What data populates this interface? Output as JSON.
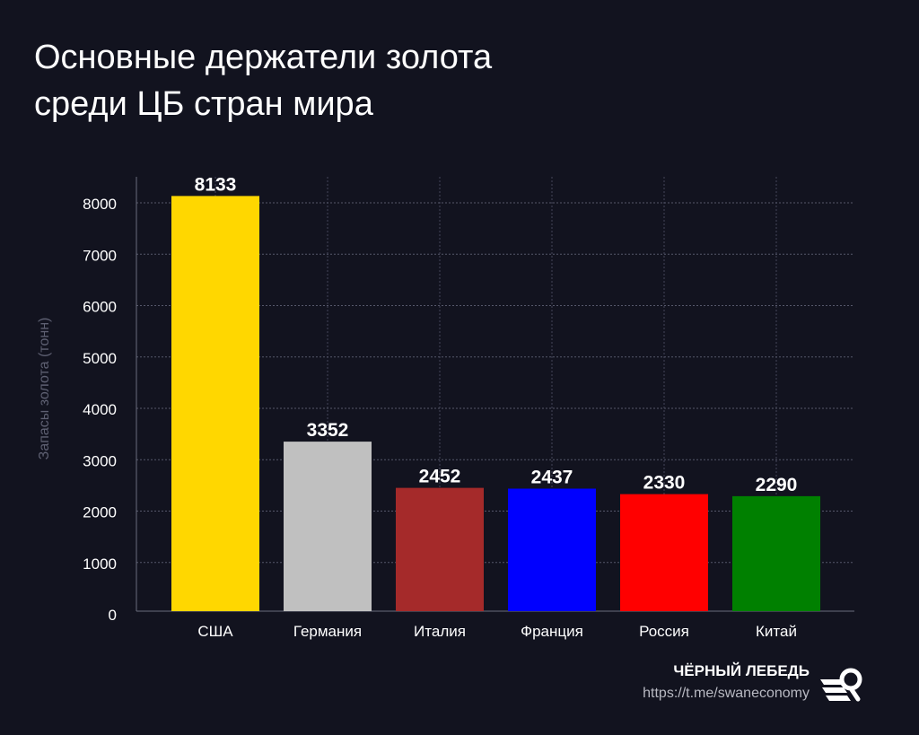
{
  "title_lines": [
    "Основные держатели золота",
    "среди ЦБ стран мира"
  ],
  "chart_data": {
    "type": "bar",
    "title": "Основные держатели золота среди ЦБ стран мира",
    "ylabel": "Запасы золота (тонн)",
    "xlabel": "",
    "categories": [
      "США",
      "Германия",
      "Италия",
      "Франция",
      "Россия",
      "Китай"
    ],
    "values": [
      8133,
      3352,
      2452,
      2437,
      2330,
      2290
    ],
    "colors": [
      "#ffd700",
      "#c0c0c0",
      "#a52a2a",
      "#0000ff",
      "#ff0000",
      "#008000"
    ],
    "ylim": [
      0,
      8000
    ],
    "yticks": [
      0,
      1000,
      2000,
      3000,
      4000,
      5000,
      6000,
      7000,
      8000
    ],
    "grid": true,
    "data_labels": true
  },
  "brand": {
    "name": "ЧЁРНЫЙ ЛЕБЕДЬ",
    "url": "https://t.me/swaneconomy"
  }
}
